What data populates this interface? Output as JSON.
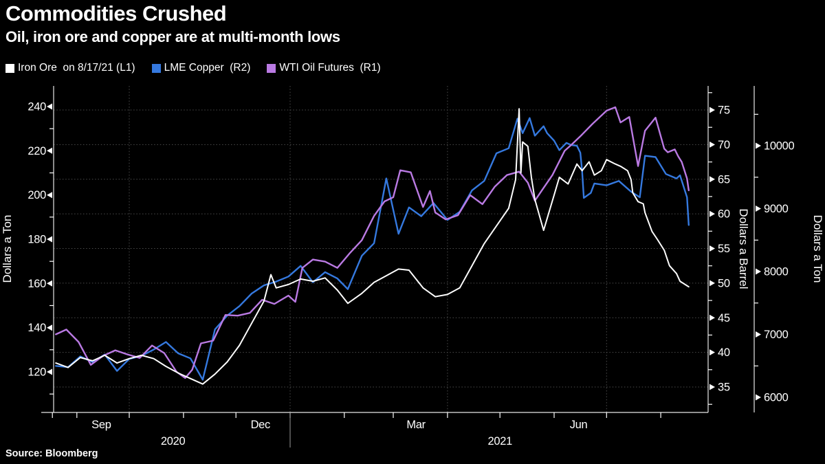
{
  "header": {
    "title": "Commodities Crushed",
    "subtitle": "Oil, iron ore and copper are at multi-month lows"
  },
  "source": "Source: Bloomberg",
  "legend": [
    {
      "label": "Iron Ore  on 8/17/21 (L1)",
      "color": "#ffffff"
    },
    {
      "label": "LME Copper  (R2)",
      "color": "#3579df"
    },
    {
      "label": "WTI Oil Futures  (R1)",
      "color": "#ba7ae3"
    }
  ],
  "colors": {
    "background": "#000000",
    "text": "#ffffff",
    "gridline": "#4d4d4d",
    "axis": "#e8e8e8",
    "year_divider": "#9a9a9a"
  },
  "chart_data": {
    "type": "line",
    "title": "Commodities Crushed",
    "subtitle": "Oil, iron ore and copper are at multi-month lows",
    "grid": "dotted horizontal lines at right-barrel-axis ticks; dotted vertical lines at quarter starts",
    "legend_position": "top-left",
    "x_axis": {
      "range": [
        "2020-08-18",
        "2021-08-28"
      ],
      "month_tick_dates": [
        "2020-08-18",
        "2020-09-01",
        "2020-10-01",
        "2020-11-01",
        "2020-12-01",
        "2021-01-01",
        "2021-02-01",
        "2021-03-01",
        "2021-04-01",
        "2021-05-01",
        "2021-06-01",
        "2021-07-01",
        "2021-08-01"
      ],
      "month_labels": [
        {
          "text": "Sep",
          "date": "2020-09-15"
        },
        {
          "text": "Dec",
          "date": "2020-12-15"
        },
        {
          "text": "Mar",
          "date": "2021-03-14"
        },
        {
          "text": "Jun",
          "date": "2021-06-15"
        }
      ],
      "year_labels": [
        {
          "text": "2020",
          "date": "2020-10-26"
        },
        {
          "text": "2021",
          "date": "2021-05-01"
        }
      ],
      "quarter_gridline_dates": [
        "2020-10-01",
        "2021-01-01",
        "2021-04-01",
        "2021-07-01"
      ],
      "year_divider_date": "2021-01-01"
    },
    "axes": {
      "left": {
        "id": "L1",
        "title": "Dollars a Ton",
        "ticks": [
          240,
          220,
          200,
          180,
          160,
          140,
          120
        ],
        "minor_step": 10,
        "range_shown": [
          102,
          249
        ]
      },
      "right_barrel": {
        "id": "R1",
        "title": "Dollars a Barrel",
        "ticks": [
          75,
          70,
          65,
          60,
          55,
          50,
          45,
          40,
          35
        ],
        "minor_step": 2.5,
        "range_shown": [
          31,
          78.5
        ]
      },
      "right_ton": {
        "id": "R2",
        "title": "Dollars a Ton",
        "ticks": [
          10000,
          9000,
          8000,
          7000,
          6000
        ],
        "minor_step": 500,
        "range_shown": [
          5760,
          10950
        ]
      }
    },
    "series": [
      {
        "name": "Iron Ore on 8/17/21 (L1)",
        "key": "iron-ore",
        "axis": "L1",
        "color": "#ffffff",
        "width": 2,
        "points": [
          [
            "2020-08-20",
            124
          ],
          [
            "2020-08-27",
            122
          ],
          [
            "2020-09-03",
            126.5
          ],
          [
            "2020-09-10",
            125
          ],
          [
            "2020-09-17",
            127.5
          ],
          [
            "2020-09-24",
            124
          ],
          [
            "2020-10-01",
            126
          ],
          [
            "2020-10-08",
            127.5
          ],
          [
            "2020-10-15",
            126
          ],
          [
            "2020-10-22",
            122.5
          ],
          [
            "2020-10-29",
            119.5
          ],
          [
            "2020-11-05",
            117
          ],
          [
            "2020-11-12",
            114.5
          ],
          [
            "2020-11-19",
            119
          ],
          [
            "2020-11-26",
            124.5
          ],
          [
            "2020-12-03",
            132
          ],
          [
            "2020-12-10",
            142
          ],
          [
            "2020-12-17",
            152
          ],
          [
            "2020-12-21",
            164
          ],
          [
            "2020-12-24",
            158
          ],
          [
            "2020-12-31",
            159.5
          ],
          [
            "2021-01-07",
            162
          ],
          [
            "2021-01-14",
            161
          ],
          [
            "2021-01-21",
            162.5
          ],
          [
            "2021-01-28",
            157
          ],
          [
            "2021-02-03",
            151
          ],
          [
            "2021-02-11",
            155.5
          ],
          [
            "2021-02-18",
            160.5
          ],
          [
            "2021-02-25",
            163.5
          ],
          [
            "2021-03-04",
            166.5
          ],
          [
            "2021-03-10",
            166
          ],
          [
            "2021-03-18",
            158
          ],
          [
            "2021-03-25",
            154
          ],
          [
            "2021-04-01",
            155
          ],
          [
            "2021-04-08",
            158
          ],
          [
            "2021-04-15",
            168
          ],
          [
            "2021-04-22",
            178
          ],
          [
            "2021-04-29",
            186
          ],
          [
            "2021-05-06",
            194
          ],
          [
            "2021-05-10",
            207
          ],
          [
            "2021-05-12",
            239
          ],
          [
            "2021-05-13",
            210
          ],
          [
            "2021-05-14",
            224
          ],
          [
            "2021-05-17",
            222
          ],
          [
            "2021-05-19",
            208
          ],
          [
            "2021-05-21",
            198
          ],
          [
            "2021-05-26",
            184
          ],
          [
            "2021-06-01",
            200
          ],
          [
            "2021-06-04",
            208
          ],
          [
            "2021-06-09",
            205
          ],
          [
            "2021-06-14",
            214
          ],
          [
            "2021-06-17",
            211
          ],
          [
            "2021-06-21",
            215
          ],
          [
            "2021-06-24",
            209
          ],
          [
            "2021-06-28",
            211
          ],
          [
            "2021-07-01",
            216
          ],
          [
            "2021-07-06",
            214
          ],
          [
            "2021-07-09",
            213
          ],
          [
            "2021-07-13",
            211
          ],
          [
            "2021-07-15",
            207
          ],
          [
            "2021-07-16",
            201
          ],
          [
            "2021-07-19",
            197
          ],
          [
            "2021-07-22",
            196
          ],
          [
            "2021-07-23",
            192
          ],
          [
            "2021-07-27",
            183.5
          ],
          [
            "2021-07-30",
            180
          ],
          [
            "2021-08-03",
            175
          ],
          [
            "2021-08-06",
            168
          ],
          [
            "2021-08-10",
            164.5
          ],
          [
            "2021-08-12",
            161
          ],
          [
            "2021-08-16",
            159
          ],
          [
            "2021-08-17",
            158.5
          ]
        ]
      },
      {
        "name": "LME Copper (R2)",
        "key": "lme-copper",
        "axis": "R2",
        "color": "#3579df",
        "width": 2.4,
        "points": [
          [
            "2020-08-20",
            6500
          ],
          [
            "2020-08-27",
            6480
          ],
          [
            "2020-09-03",
            6650
          ],
          [
            "2020-09-10",
            6560
          ],
          [
            "2020-09-17",
            6680
          ],
          [
            "2020-09-24",
            6420
          ],
          [
            "2020-10-01",
            6610
          ],
          [
            "2020-10-08",
            6660
          ],
          [
            "2020-10-15",
            6760
          ],
          [
            "2020-10-22",
            6880
          ],
          [
            "2020-10-29",
            6700
          ],
          [
            "2020-11-05",
            6620
          ],
          [
            "2020-11-12",
            6280
          ],
          [
            "2020-11-19",
            7080
          ],
          [
            "2020-11-26",
            7300
          ],
          [
            "2020-12-03",
            7450
          ],
          [
            "2020-12-10",
            7650
          ],
          [
            "2020-12-17",
            7780
          ],
          [
            "2020-12-24",
            7840
          ],
          [
            "2020-12-31",
            7920
          ],
          [
            "2021-01-07",
            8090
          ],
          [
            "2021-01-14",
            7830
          ],
          [
            "2021-01-21",
            7990
          ],
          [
            "2021-01-28",
            7890
          ],
          [
            "2021-02-03",
            7720
          ],
          [
            "2021-02-11",
            8250
          ],
          [
            "2021-02-18",
            8450
          ],
          [
            "2021-02-25",
            9480
          ],
          [
            "2021-03-04",
            8600
          ],
          [
            "2021-03-10",
            9020
          ],
          [
            "2021-03-17",
            8880
          ],
          [
            "2021-03-24",
            9090
          ],
          [
            "2021-04-01",
            8820
          ],
          [
            "2021-04-08",
            8950
          ],
          [
            "2021-04-15",
            9290
          ],
          [
            "2021-04-22",
            9440
          ],
          [
            "2021-04-29",
            9880
          ],
          [
            "2021-05-06",
            9960
          ],
          [
            "2021-05-11",
            10430
          ],
          [
            "2021-05-14",
            10200
          ],
          [
            "2021-05-18",
            10440
          ],
          [
            "2021-05-21",
            10160
          ],
          [
            "2021-05-26",
            10310
          ],
          [
            "2021-05-28",
            10200
          ],
          [
            "2021-06-01",
            10080
          ],
          [
            "2021-06-04",
            9930
          ],
          [
            "2021-06-08",
            10045
          ],
          [
            "2021-06-11",
            10010
          ],
          [
            "2021-06-14",
            10000
          ],
          [
            "2021-06-16",
            9890
          ],
          [
            "2021-06-17",
            9600
          ],
          [
            "2021-06-18",
            9170
          ],
          [
            "2021-06-22",
            9250
          ],
          [
            "2021-06-24",
            9400
          ],
          [
            "2021-07-01",
            9370
          ],
          [
            "2021-07-08",
            9440
          ],
          [
            "2021-07-15",
            9270
          ],
          [
            "2021-07-20",
            9180
          ],
          [
            "2021-07-23",
            9840
          ],
          [
            "2021-07-29",
            9820
          ],
          [
            "2021-08-04",
            9550
          ],
          [
            "2021-08-10",
            9480
          ],
          [
            "2021-08-12",
            9530
          ],
          [
            "2021-08-16",
            9180
          ],
          [
            "2021-08-17",
            8740
          ]
        ]
      },
      {
        "name": "WTI Oil Futures (R1)",
        "key": "wti-oil",
        "axis": "R1",
        "color": "#ba7ae3",
        "width": 2.4,
        "points": [
          [
            "2020-08-20",
            42.6
          ],
          [
            "2020-08-26",
            43.3
          ],
          [
            "2020-09-02",
            41.5
          ],
          [
            "2020-09-09",
            38.2
          ],
          [
            "2020-09-16",
            39.5
          ],
          [
            "2020-09-23",
            40.3
          ],
          [
            "2020-09-30",
            39.7
          ],
          [
            "2020-10-07",
            39.2
          ],
          [
            "2020-10-14",
            41.0
          ],
          [
            "2020-10-21",
            39.9
          ],
          [
            "2020-10-28",
            37.2
          ],
          [
            "2020-11-02",
            36.3
          ],
          [
            "2020-11-06",
            37.5
          ],
          [
            "2020-11-11",
            41.3
          ],
          [
            "2020-11-18",
            41.7
          ],
          [
            "2020-11-25",
            45.4
          ],
          [
            "2020-12-02",
            45.3
          ],
          [
            "2020-12-09",
            45.7
          ],
          [
            "2020-12-16",
            47.6
          ],
          [
            "2020-12-23",
            47.0
          ],
          [
            "2020-12-31",
            48.2
          ],
          [
            "2021-01-04",
            47.3
          ],
          [
            "2021-01-08",
            52.2
          ],
          [
            "2021-01-14",
            53.4
          ],
          [
            "2021-01-21",
            53.1
          ],
          [
            "2021-01-28",
            52.2
          ],
          [
            "2021-02-04",
            54.3
          ],
          [
            "2021-02-11",
            56.2
          ],
          [
            "2021-02-18",
            59.7
          ],
          [
            "2021-02-24",
            61.8
          ],
          [
            "2021-03-01",
            62.4
          ],
          [
            "2021-03-05",
            66.3
          ],
          [
            "2021-03-11",
            66.0
          ],
          [
            "2021-03-18",
            61.0
          ],
          [
            "2021-03-22",
            63.3
          ],
          [
            "2021-03-25",
            60.2
          ],
          [
            "2021-03-31",
            59.2
          ],
          [
            "2021-04-07",
            59.8
          ],
          [
            "2021-04-14",
            62.7
          ],
          [
            "2021-04-21",
            61.4
          ],
          [
            "2021-04-28",
            63.9
          ],
          [
            "2021-05-05",
            65.6
          ],
          [
            "2021-05-12",
            66.1
          ],
          [
            "2021-05-17",
            64.5
          ],
          [
            "2021-05-21",
            61.9
          ],
          [
            "2021-05-25",
            63.4
          ],
          [
            "2021-05-31",
            65.6
          ],
          [
            "2021-06-07",
            69.1
          ],
          [
            "2021-06-11",
            70.0
          ],
          [
            "2021-06-16",
            71.2
          ],
          [
            "2021-06-23",
            73.0
          ],
          [
            "2021-07-01",
            74.9
          ],
          [
            "2021-07-06",
            75.4
          ],
          [
            "2021-07-09",
            73.2
          ],
          [
            "2021-07-14",
            74.0
          ],
          [
            "2021-07-19",
            66.9
          ],
          [
            "2021-07-23",
            72.0
          ],
          [
            "2021-07-29",
            73.9
          ],
          [
            "2021-08-03",
            69.4
          ],
          [
            "2021-08-05",
            68.9
          ],
          [
            "2021-08-09",
            69.3
          ],
          [
            "2021-08-11",
            68.3
          ],
          [
            "2021-08-13",
            67.5
          ],
          [
            "2021-08-16",
            65.1
          ],
          [
            "2021-08-17",
            63.4
          ]
        ]
      }
    ]
  }
}
